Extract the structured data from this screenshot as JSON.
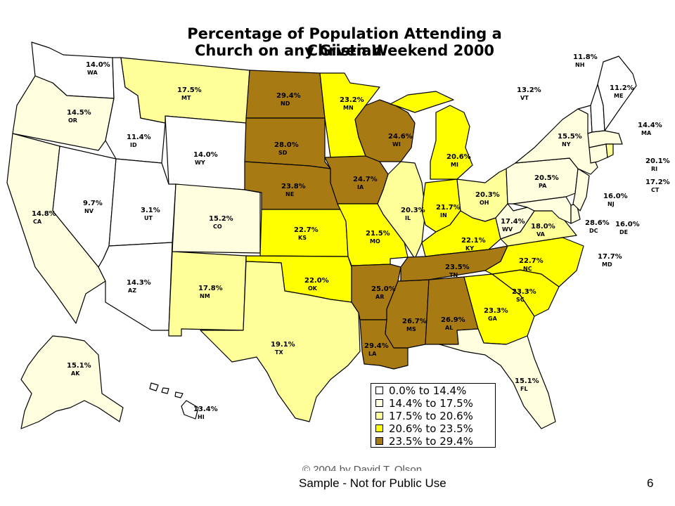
{
  "title": {
    "line1": "Percentage of Population Attending a Christian",
    "line2": "Church on any Given Weekend 2000"
  },
  "colors": {
    "c1": "#ffffff",
    "c2": "#ffffe0",
    "c3": "#ffff99",
    "c4": "#ffff00",
    "c5": "#a87a14"
  },
  "legend": [
    {
      "label": "0.0% to 14.4%",
      "color": "#ffffff"
    },
    {
      "label": "14.4% to 17.5%",
      "color": "#ffffe0"
    },
    {
      "label": "17.5% to 20.6%",
      "color": "#ffff99"
    },
    {
      "label": "20.6% to 23.5%",
      "color": "#ffff00"
    },
    {
      "label": "23.5% to 29.4%",
      "color": "#a87a14"
    }
  ],
  "states": [
    {
      "abbr": "WA",
      "pct": "14.0%"
    },
    {
      "abbr": "OR",
      "pct": "14.5%"
    },
    {
      "abbr": "CA",
      "pct": "14.8%"
    },
    {
      "abbr": "NV",
      "pct": "9.7%"
    },
    {
      "abbr": "ID",
      "pct": "11.4%"
    },
    {
      "abbr": "MT",
      "pct": "17.5%"
    },
    {
      "abbr": "WY",
      "pct": "14.0%"
    },
    {
      "abbr": "UT",
      "pct": "3.1%"
    },
    {
      "abbr": "AZ",
      "pct": "14.3%"
    },
    {
      "abbr": "CO",
      "pct": "15.2%"
    },
    {
      "abbr": "NM",
      "pct": "17.8%"
    },
    {
      "abbr": "ND",
      "pct": "29.4%"
    },
    {
      "abbr": "SD",
      "pct": "28.0%"
    },
    {
      "abbr": "NE",
      "pct": "23.8%"
    },
    {
      "abbr": "KS",
      "pct": "22.7%"
    },
    {
      "abbr": "OK",
      "pct": "22.0%"
    },
    {
      "abbr": "TX",
      "pct": "19.1%"
    },
    {
      "abbr": "MN",
      "pct": "23.2%"
    },
    {
      "abbr": "IA",
      "pct": "24.7%"
    },
    {
      "abbr": "MO",
      "pct": "21.5%"
    },
    {
      "abbr": "AR",
      "pct": "25.0%"
    },
    {
      "abbr": "LA",
      "pct": "29.4%"
    },
    {
      "abbr": "WI",
      "pct": "24.6%"
    },
    {
      "abbr": "IL",
      "pct": "20.3%"
    },
    {
      "abbr": "MS",
      "pct": "26.7%"
    },
    {
      "abbr": "MI",
      "pct": "20.6%"
    },
    {
      "abbr": "IN",
      "pct": "21.7%"
    },
    {
      "abbr": "KY",
      "pct": "22.1%"
    },
    {
      "abbr": "TN",
      "pct": "23.5%"
    },
    {
      "abbr": "AL",
      "pct": "26.9%"
    },
    {
      "abbr": "OH",
      "pct": "20.3%"
    },
    {
      "abbr": "GA",
      "pct": "23.3%"
    },
    {
      "abbr": "FL",
      "pct": "15.1%"
    },
    {
      "abbr": "SC",
      "pct": "23.3%"
    },
    {
      "abbr": "NC",
      "pct": "22.7%"
    },
    {
      "abbr": "VA",
      "pct": "18.0%"
    },
    {
      "abbr": "WV",
      "pct": "17.4%"
    },
    {
      "abbr": "PA",
      "pct": "20.5%"
    },
    {
      "abbr": "NY",
      "pct": "15.5%"
    },
    {
      "abbr": "VT",
      "pct": "13.2%"
    },
    {
      "abbr": "NH",
      "pct": "11.8%"
    },
    {
      "abbr": "ME",
      "pct": "11.2%"
    },
    {
      "abbr": "MA",
      "pct": "14.4%"
    },
    {
      "abbr": "RI",
      "pct": "20.1%"
    },
    {
      "abbr": "CT",
      "pct": "17.2%"
    },
    {
      "abbr": "NJ",
      "pct": "16.0%"
    },
    {
      "abbr": "DE",
      "pct": "16.0%"
    },
    {
      "abbr": "DC",
      "pct": "28.6%"
    },
    {
      "abbr": "MD",
      "pct": "17.7%"
    },
    {
      "abbr": "AK",
      "pct": "15.1%"
    },
    {
      "abbr": "HI",
      "pct": "13.4%"
    }
  ],
  "footer": {
    "copyright": "© 2004 by David T. Olson",
    "sample": "Sample - Not for Public Use",
    "page": "6"
  }
}
